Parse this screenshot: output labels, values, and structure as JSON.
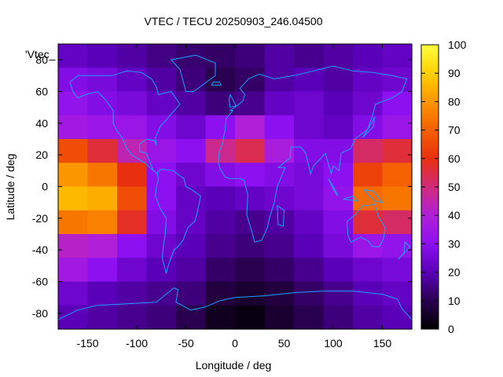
{
  "chart_data": {
    "type": "heatmap",
    "title": "VTEC / TECU 20250903_246.04500",
    "xlabel": "Longitude / deg",
    "ylabel": "Latitude / deg",
    "legend_key": "'Vtec_",
    "xlim": [
      -180,
      180
    ],
    "ylim": [
      -90,
      90
    ],
    "x_ticks": [
      -150,
      -100,
      -50,
      0,
      50,
      100,
      150
    ],
    "y_ticks": [
      -80,
      -60,
      -40,
      -20,
      0,
      20,
      40,
      60,
      80
    ],
    "colorbar": {
      "range": [
        0,
        100
      ],
      "ticks": [
        0,
        10,
        20,
        30,
        40,
        50,
        60,
        70,
        80,
        90,
        100
      ],
      "palette": [
        "#000000",
        "#2a0050",
        "#5a00b8",
        "#8c10f0",
        "#b020d8",
        "#d02a7a",
        "#e83010",
        "#f56000",
        "#fb9600",
        "#ffd000",
        "#ffff40"
      ]
    },
    "lon_bins_deg": [
      -180,
      -150,
      -120,
      -90,
      -60,
      -30,
      0,
      30,
      60,
      90,
      120,
      150,
      180
    ],
    "lat_bins_deg": [
      90,
      75,
      60,
      45,
      30,
      15,
      0,
      -15,
      -30,
      -45,
      -60,
      -75,
      -90
    ],
    "values": [
      [
        22,
        20,
        18,
        15,
        13,
        12,
        14,
        18,
        16,
        18,
        20,
        22
      ],
      [
        28,
        26,
        22,
        18,
        14,
        10,
        12,
        18,
        20,
        18,
        22,
        24
      ],
      [
        32,
        28,
        26,
        22,
        18,
        14,
        16,
        22,
        24,
        20,
        24,
        30
      ],
      [
        36,
        34,
        34,
        28,
        24,
        30,
        40,
        30,
        24,
        22,
        28,
        34
      ],
      [
        66,
        56,
        44,
        34,
        30,
        48,
        54,
        38,
        28,
        28,
        52,
        56
      ],
      [
        80,
        74,
        60,
        30,
        24,
        28,
        30,
        28,
        26,
        30,
        64,
        70
      ],
      [
        86,
        84,
        66,
        30,
        22,
        20,
        22,
        24,
        26,
        32,
        72,
        74
      ],
      [
        74,
        76,
        58,
        28,
        22,
        18,
        16,
        18,
        22,
        28,
        56,
        52
      ],
      [
        42,
        40,
        30,
        24,
        20,
        16,
        14,
        16,
        20,
        26,
        34,
        32
      ],
      [
        36,
        30,
        24,
        20,
        18,
        12,
        10,
        12,
        16,
        20,
        24,
        26
      ],
      [
        24,
        20,
        18,
        16,
        14,
        8,
        6,
        8,
        12,
        16,
        20,
        22
      ],
      [
        20,
        18,
        16,
        14,
        10,
        4,
        2,
        6,
        10,
        14,
        18,
        20
      ]
    ]
  }
}
